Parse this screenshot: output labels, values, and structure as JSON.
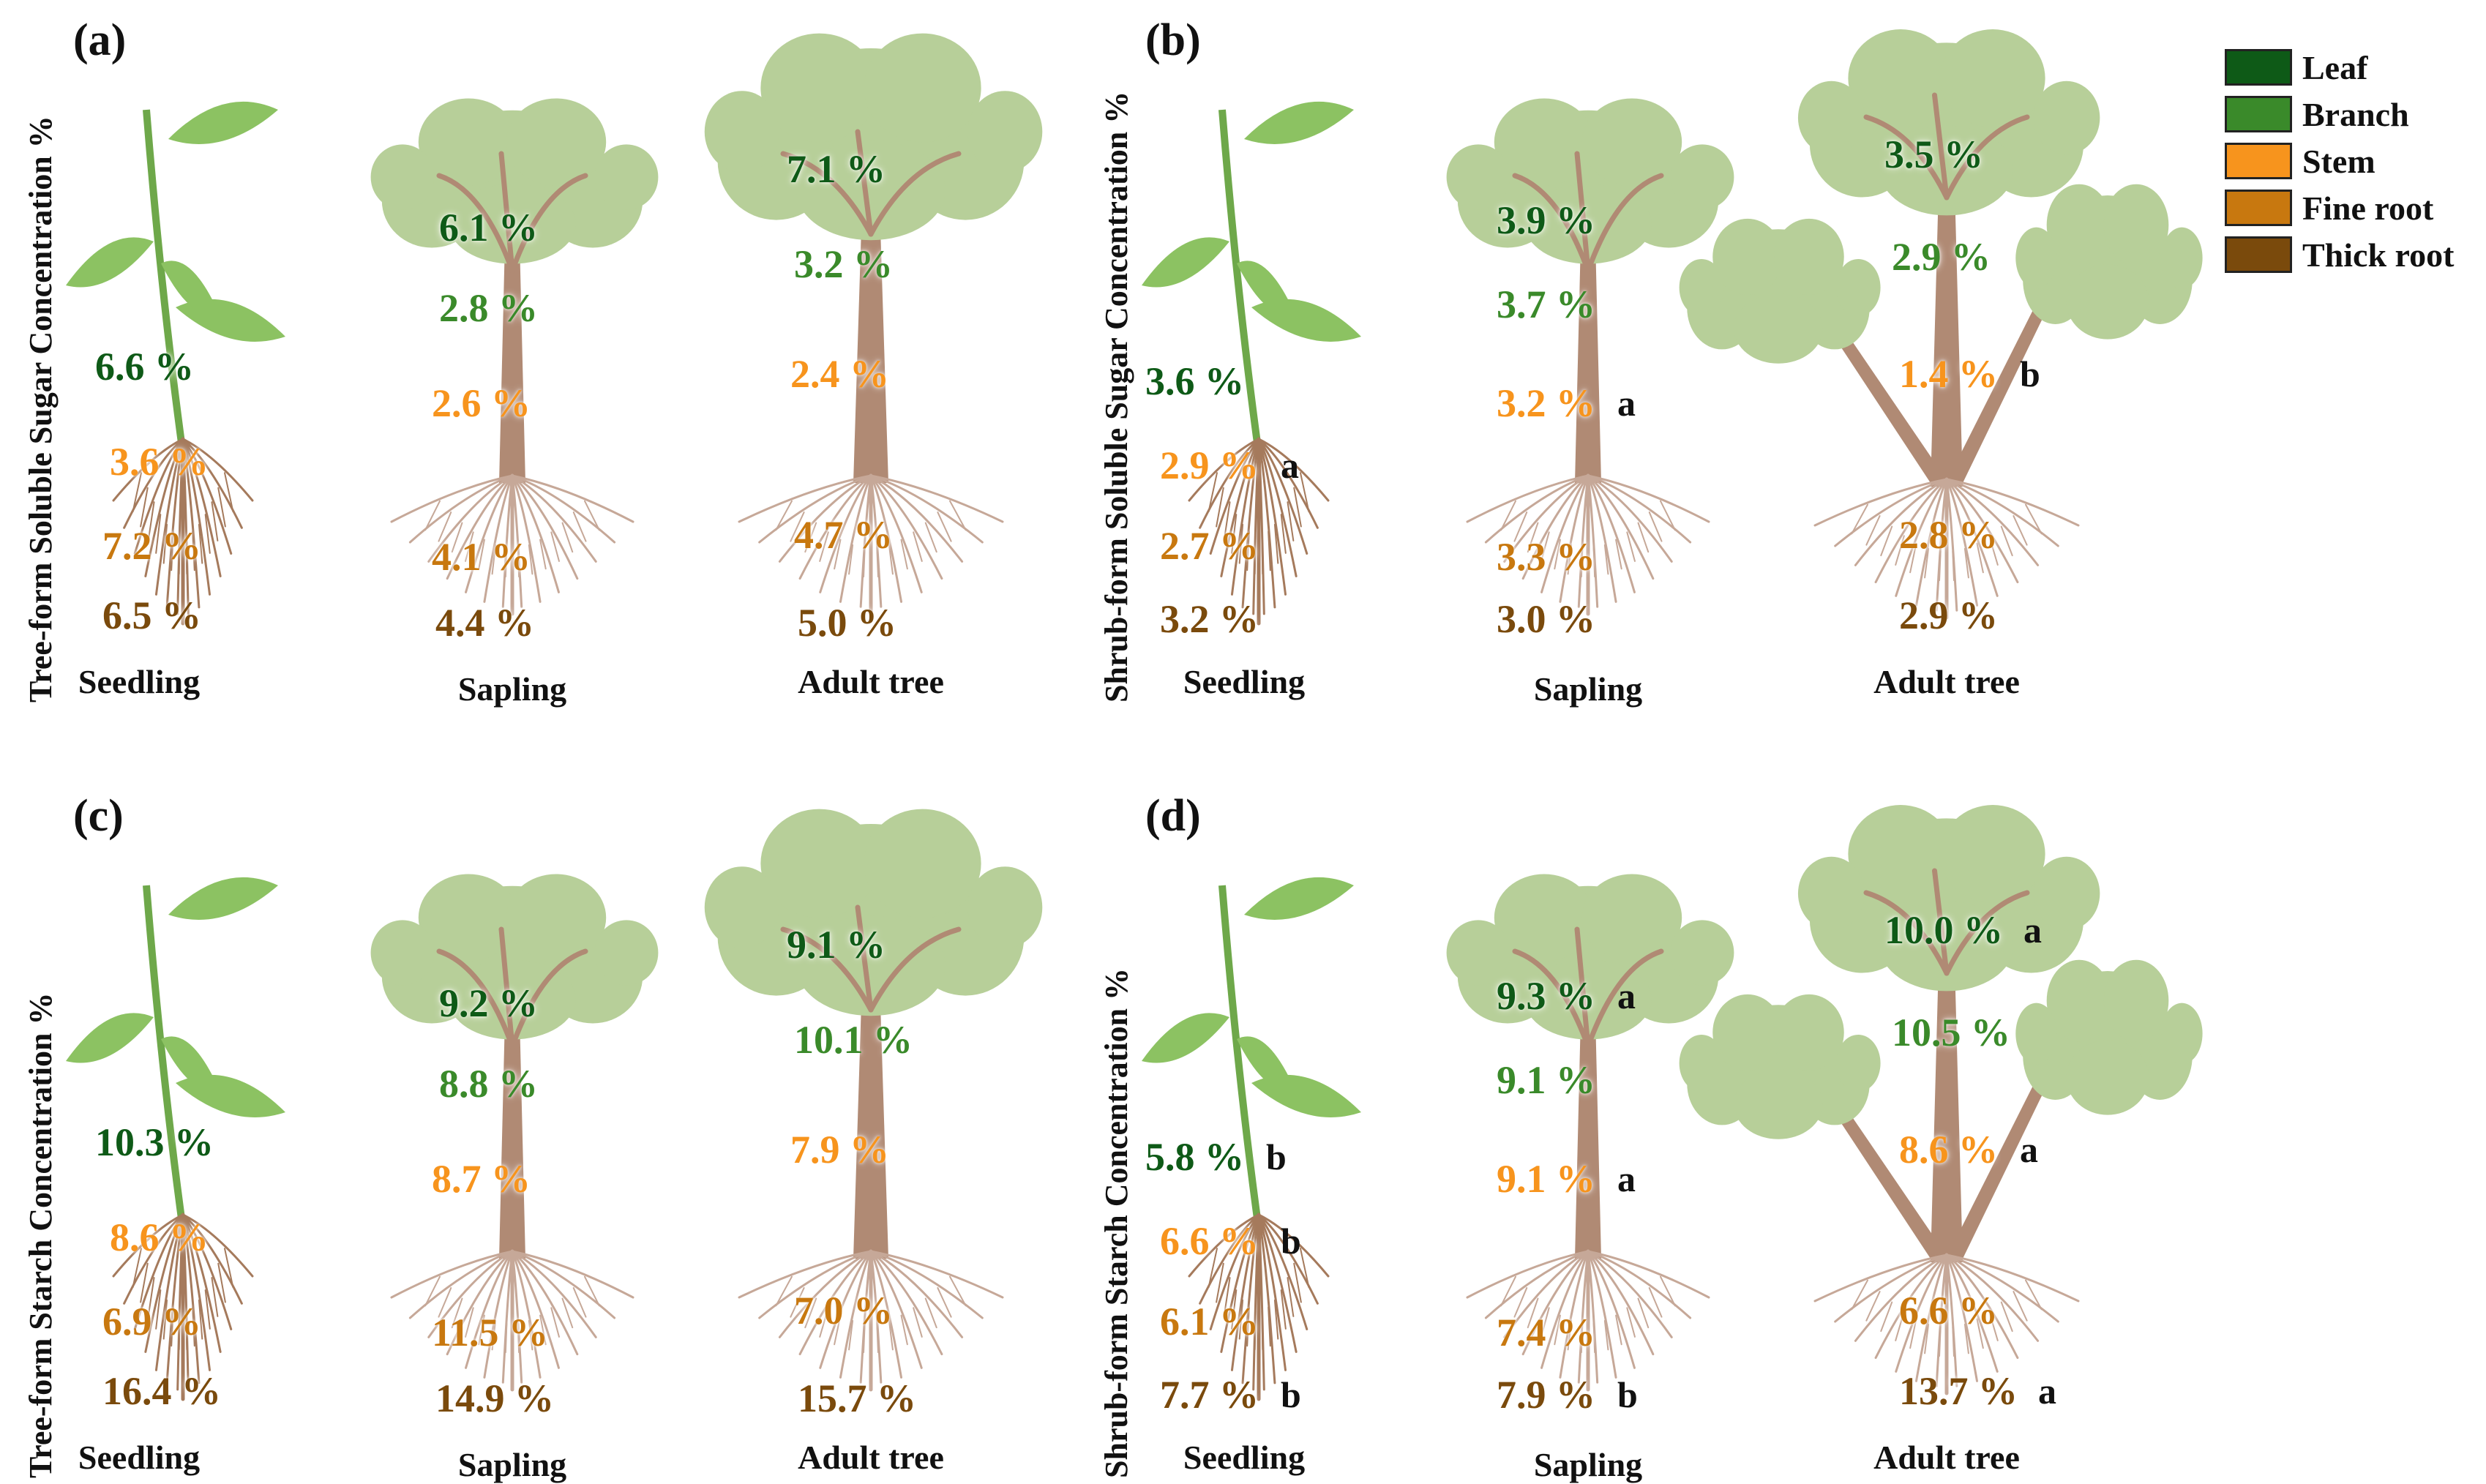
{
  "colors": {
    "leaf": "#0e5a17",
    "branch": "#3a8a2a",
    "stem": "#f7941d",
    "fine_root": "#c8780f",
    "thick_root": "#7a4a0c",
    "canopy": "#b7cf99",
    "trunk": "#b08a74"
  },
  "legend": [
    {
      "label": "Leaf",
      "color": "#0e5a17"
    },
    {
      "label": "Branch",
      "color": "#3a8a2a"
    },
    {
      "label": "Stem",
      "color": "#f7941d"
    },
    {
      "label": "Fine root",
      "color": "#c8780f"
    },
    {
      "label": "Thick root",
      "color": "#7a4a0c"
    }
  ],
  "panels": [
    {
      "label": "(a)",
      "ylabel": "Tree-form  Soluble  Sugar  Concentration  %",
      "stages": [
        {
          "name": "Seedling",
          "leaf": "6.6 %",
          "stem": "3.6 %",
          "fine_root": "7.2 %",
          "thick_root": "6.5 %"
        },
        {
          "name": "Sapling",
          "leaf": "6.1 %",
          "branch": "2.8 %",
          "stem": "2.6 %",
          "fine_root": "4.1 %",
          "thick_root": "4.4 %"
        },
        {
          "name": "Adult tree",
          "leaf": "7.1 %",
          "branch": "3.2 %",
          "stem": "2.4 %",
          "fine_root": "4.7 %",
          "thick_root": "5.0 %"
        }
      ]
    },
    {
      "label": "(b)",
      "ylabel": "Shrub-form  Soluble  Sugar  Concentration  %",
      "stages": [
        {
          "name": "Seedling",
          "leaf": "3.6 %",
          "stem": "2.9 %",
          "stem_sig": "a",
          "fine_root": "2.7 %",
          "thick_root": "3.2 %"
        },
        {
          "name": "Sapling",
          "leaf": "3.9 %",
          "branch": "3.7 %",
          "stem": "3.2 %",
          "stem_sig": "a",
          "fine_root": "3.3 %",
          "thick_root": "3.0 %"
        },
        {
          "name": "Adult tree",
          "leaf": "3.5 %",
          "branch": "2.9 %",
          "stem": "1.4 %",
          "stem_sig": "b",
          "fine_root": "2.8 %",
          "thick_root": "2.9 %"
        }
      ]
    },
    {
      "label": "(c)",
      "ylabel": "Tree-form  Starch  Concentration  %",
      "stages": [
        {
          "name": "Seedling",
          "leaf": "10.3 %",
          "stem": "8.6 %",
          "fine_root": "6.9 %",
          "thick_root": "16.4 %"
        },
        {
          "name": "Sapling",
          "leaf": "9.2 %",
          "branch": "8.8 %",
          "stem": "8.7 %",
          "fine_root": "11.5 %",
          "thick_root": "14.9 %"
        },
        {
          "name": "Adult tree",
          "leaf": "9.1 %",
          "branch": "10.1 %",
          "stem": "7.9 %",
          "fine_root": "7.0 %",
          "thick_root": "15.7 %"
        }
      ]
    },
    {
      "label": "(d)",
      "ylabel": "Shrub-form  Starch  Concentration  %",
      "stages": [
        {
          "name": "Seedling",
          "leaf": "5.8 %",
          "leaf_sig": "b",
          "stem": "6.6 %",
          "stem_sig": "b",
          "fine_root": "6.1 %",
          "thick_root": "7.7 %",
          "thick_root_sig": "b"
        },
        {
          "name": "Sapling",
          "leaf": "9.3 %",
          "leaf_sig": "a",
          "branch": "9.1 %",
          "stem": "9.1 %",
          "stem_sig": "a",
          "fine_root": "7.4 %",
          "thick_root": "7.9 %",
          "thick_root_sig": "b"
        },
        {
          "name": "Adult tree",
          "leaf": "10.0 %",
          "leaf_sig": "a",
          "branch": "10.5 %",
          "stem": "8.6 %",
          "stem_sig": "a",
          "fine_root": "6.6 %",
          "thick_root": "13.7 %",
          "thick_root_sig": "a"
        }
      ]
    }
  ]
}
